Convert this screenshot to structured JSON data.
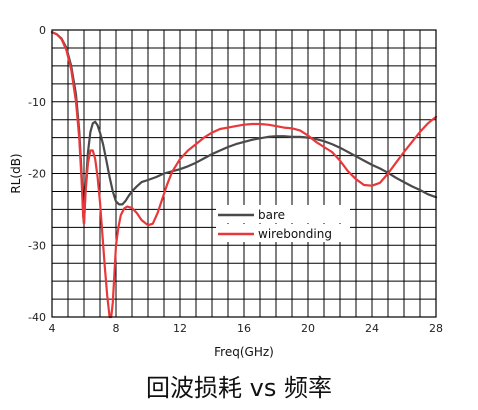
{
  "caption": "回波损耗 vs 频率",
  "colors": {
    "bare": "#4a4a4a",
    "wirebonding": "#e8383a",
    "grid": "#000000"
  },
  "chart_data": {
    "type": "line",
    "xlabel": "Freq(GHz)",
    "ylabel": "RL(dB)",
    "xlim": [
      4,
      28
    ],
    "ylim": [
      -40,
      0
    ],
    "xticks": [
      4,
      8,
      12,
      16,
      20,
      24,
      28
    ],
    "yticks": [
      0,
      -10,
      -20,
      -30,
      -40
    ],
    "grid": true,
    "legend": "center",
    "series": [
      {
        "name": "bare",
        "color": "#4a4a4a",
        "x": [
          4.0,
          4.3,
          4.6,
          4.9,
          5.2,
          5.5,
          5.7,
          5.85,
          5.95,
          6.0,
          6.1,
          6.25,
          6.4,
          6.55,
          6.7,
          6.85,
          7.0,
          7.2,
          7.4,
          7.6,
          7.8,
          8.0,
          8.2,
          8.4,
          8.6,
          8.8,
          9.0,
          9.3,
          9.6,
          10.0,
          10.5,
          11.0,
          11.5,
          12.0,
          12.5,
          13.0,
          13.5,
          14.0,
          14.5,
          15.0,
          15.5,
          16.0,
          16.5,
          17.0,
          17.5,
          18.0,
          18.5,
          19.0,
          19.5,
          20.0,
          20.5,
          21.0,
          21.5,
          22.0,
          22.5,
          23.0,
          23.5,
          24.0,
          24.5,
          25.0,
          25.5,
          26.0,
          26.5,
          27.0,
          27.5,
          28.0
        ],
        "y": [
          -0.3,
          -0.6,
          -1.2,
          -2.5,
          -5.0,
          -9.0,
          -14.0,
          -20.0,
          -25.5,
          -27.0,
          -22.0,
          -17.0,
          -14.2,
          -13.0,
          -12.8,
          -13.3,
          -14.3,
          -16.0,
          -18.2,
          -20.5,
          -22.5,
          -23.9,
          -24.3,
          -24.3,
          -23.8,
          -23.1,
          -22.5,
          -21.8,
          -21.2,
          -20.9,
          -20.5,
          -20.0,
          -19.7,
          -19.4,
          -19.0,
          -18.5,
          -17.9,
          -17.3,
          -16.8,
          -16.3,
          -15.9,
          -15.6,
          -15.3,
          -15.1,
          -14.9,
          -14.8,
          -14.8,
          -14.9,
          -14.9,
          -15.0,
          -15.2,
          -15.5,
          -15.9,
          -16.4,
          -17.0,
          -17.6,
          -18.2,
          -18.8,
          -19.3,
          -19.9,
          -20.6,
          -21.2,
          -21.8,
          -22.3,
          -22.9,
          -23.3
        ]
      },
      {
        "name": "wirebonding",
        "color": "#e8383a",
        "x": [
          4.0,
          4.3,
          4.6,
          4.9,
          5.2,
          5.5,
          5.7,
          5.85,
          5.95,
          6.0,
          6.1,
          6.25,
          6.4,
          6.55,
          6.7,
          6.85,
          7.0,
          7.15,
          7.3,
          7.45,
          7.6,
          7.7,
          7.8,
          7.9,
          8.0,
          8.15,
          8.3,
          8.5,
          8.7,
          9.0,
          9.3,
          9.6,
          10.0,
          10.3,
          10.6,
          10.9,
          11.2,
          11.5,
          12.0,
          12.5,
          13.0,
          13.5,
          14.0,
          14.5,
          15.0,
          15.5,
          16.0,
          16.5,
          17.0,
          17.5,
          18.0,
          18.5,
          19.0,
          19.5,
          20.0,
          20.5,
          21.0,
          21.5,
          22.0,
          22.5,
          23.0,
          23.5,
          24.0,
          24.5,
          25.0,
          25.5,
          26.0,
          26.5,
          27.0,
          27.5,
          28.0
        ],
        "y": [
          -0.3,
          -0.6,
          -1.3,
          -2.8,
          -5.5,
          -10.0,
          -15.0,
          -21.0,
          -26.0,
          -27.0,
          -22.5,
          -18.5,
          -16.8,
          -16.8,
          -18.0,
          -20.5,
          -24.0,
          -28.5,
          -33.0,
          -37.0,
          -40.0,
          -40.0,
          -38.0,
          -34.0,
          -30.0,
          -27.5,
          -25.8,
          -24.9,
          -24.6,
          -24.8,
          -25.5,
          -26.5,
          -27.2,
          -27.0,
          -25.5,
          -23.5,
          -21.5,
          -19.8,
          -18.0,
          -16.8,
          -15.9,
          -15.0,
          -14.3,
          -13.8,
          -13.6,
          -13.4,
          -13.2,
          -13.1,
          -13.1,
          -13.2,
          -13.4,
          -13.6,
          -13.7,
          -14.0,
          -14.7,
          -15.6,
          -16.3,
          -17.0,
          -18.2,
          -19.7,
          -20.8,
          -21.6,
          -21.7,
          -21.3,
          -20.0,
          -18.5,
          -17.0,
          -15.6,
          -14.2,
          -13.0,
          -12.1
        ]
      }
    ]
  }
}
